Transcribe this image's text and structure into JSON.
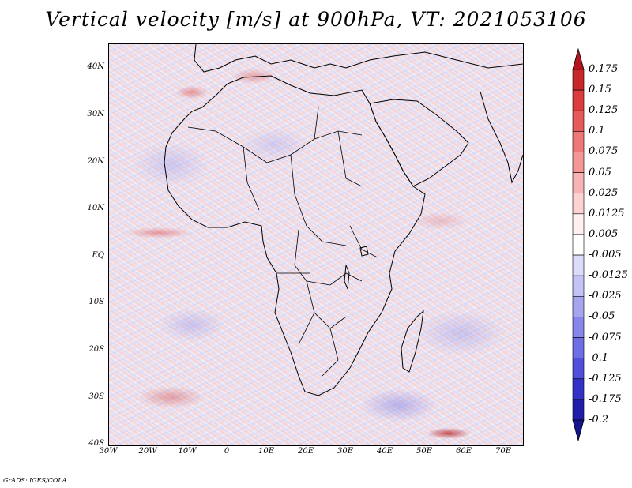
{
  "title": "Vertical velocity [m/s] at 900hPa, VT: 2021053106",
  "footer": "GrADS: IGES/COLA",
  "map": {
    "lat_labels": [
      "40N",
      "30N",
      "20N",
      "10N",
      "EQ",
      "10S",
      "20S",
      "30S",
      "40S"
    ],
    "lon_labels": [
      "30W",
      "20W",
      "10W",
      "0",
      "10E",
      "20E",
      "30E",
      "40E",
      "50E",
      "60E",
      "70E"
    ],
    "lat_range": [
      "40S",
      "45N"
    ],
    "lon_range": [
      "30W",
      "75E"
    ]
  },
  "colorbar": {
    "labels": [
      "0.175",
      "0.15",
      "0.125",
      "0.1",
      "0.075",
      "0.05",
      "0.025",
      "0.0125",
      "0.005",
      "-0.005",
      "-0.0125",
      "-0.025",
      "-0.05",
      "-0.075",
      "-0.1",
      "-0.125",
      "-0.175",
      "-0.2"
    ],
    "colors": [
      "#b4141e",
      "#c82828",
      "#dc3c3c",
      "#e65a5a",
      "#ee7878",
      "#f49696",
      "#f8b4b4",
      "#fcd2d2",
      "#fff0f0",
      "#ffffff",
      "#dcdcfa",
      "#c3c3f5",
      "#a5a5f0",
      "#8787eb",
      "#6e6ee6",
      "#5050dc",
      "#3232c8",
      "#1e1eaa",
      "#14148c"
    ]
  }
}
